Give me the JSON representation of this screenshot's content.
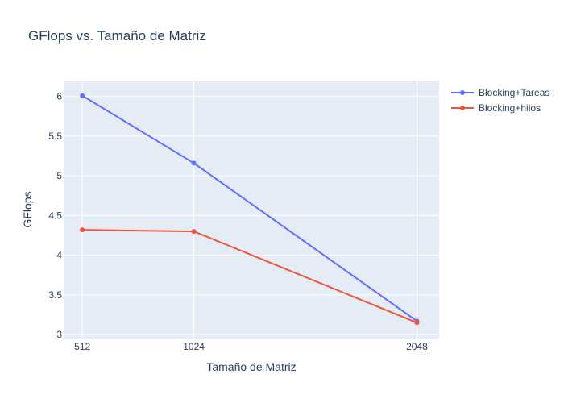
{
  "chart_data": {
    "type": "line",
    "title": "GFlops vs. Tamaño de Matriz",
    "xlabel": "Tamaño de Matriz",
    "ylabel": "GFlops",
    "x": [
      512,
      1024,
      2048
    ],
    "x_tick_labels": [
      "512",
      "1024",
      "2048"
    ],
    "xlim": [
      430,
      2150
    ],
    "ylim": [
      2.95,
      6.2
    ],
    "y_ticks": [
      3,
      3.5,
      4,
      4.5,
      5,
      5.5,
      6
    ],
    "y_tick_labels": [
      "3",
      "3.5",
      "4",
      "4.5",
      "5",
      "5.5",
      "6"
    ],
    "grid": true,
    "legend_position": "top-right",
    "plot_background": "#e5ecf6",
    "series": [
      {
        "name": "Blocking+Tareas",
        "color": "#636efa",
        "values": [
          6.01,
          5.16,
          3.17
        ]
      },
      {
        "name": "Blocking+hilos",
        "color": "#ef553b",
        "values": [
          4.32,
          4.3,
          3.15
        ]
      }
    ]
  }
}
